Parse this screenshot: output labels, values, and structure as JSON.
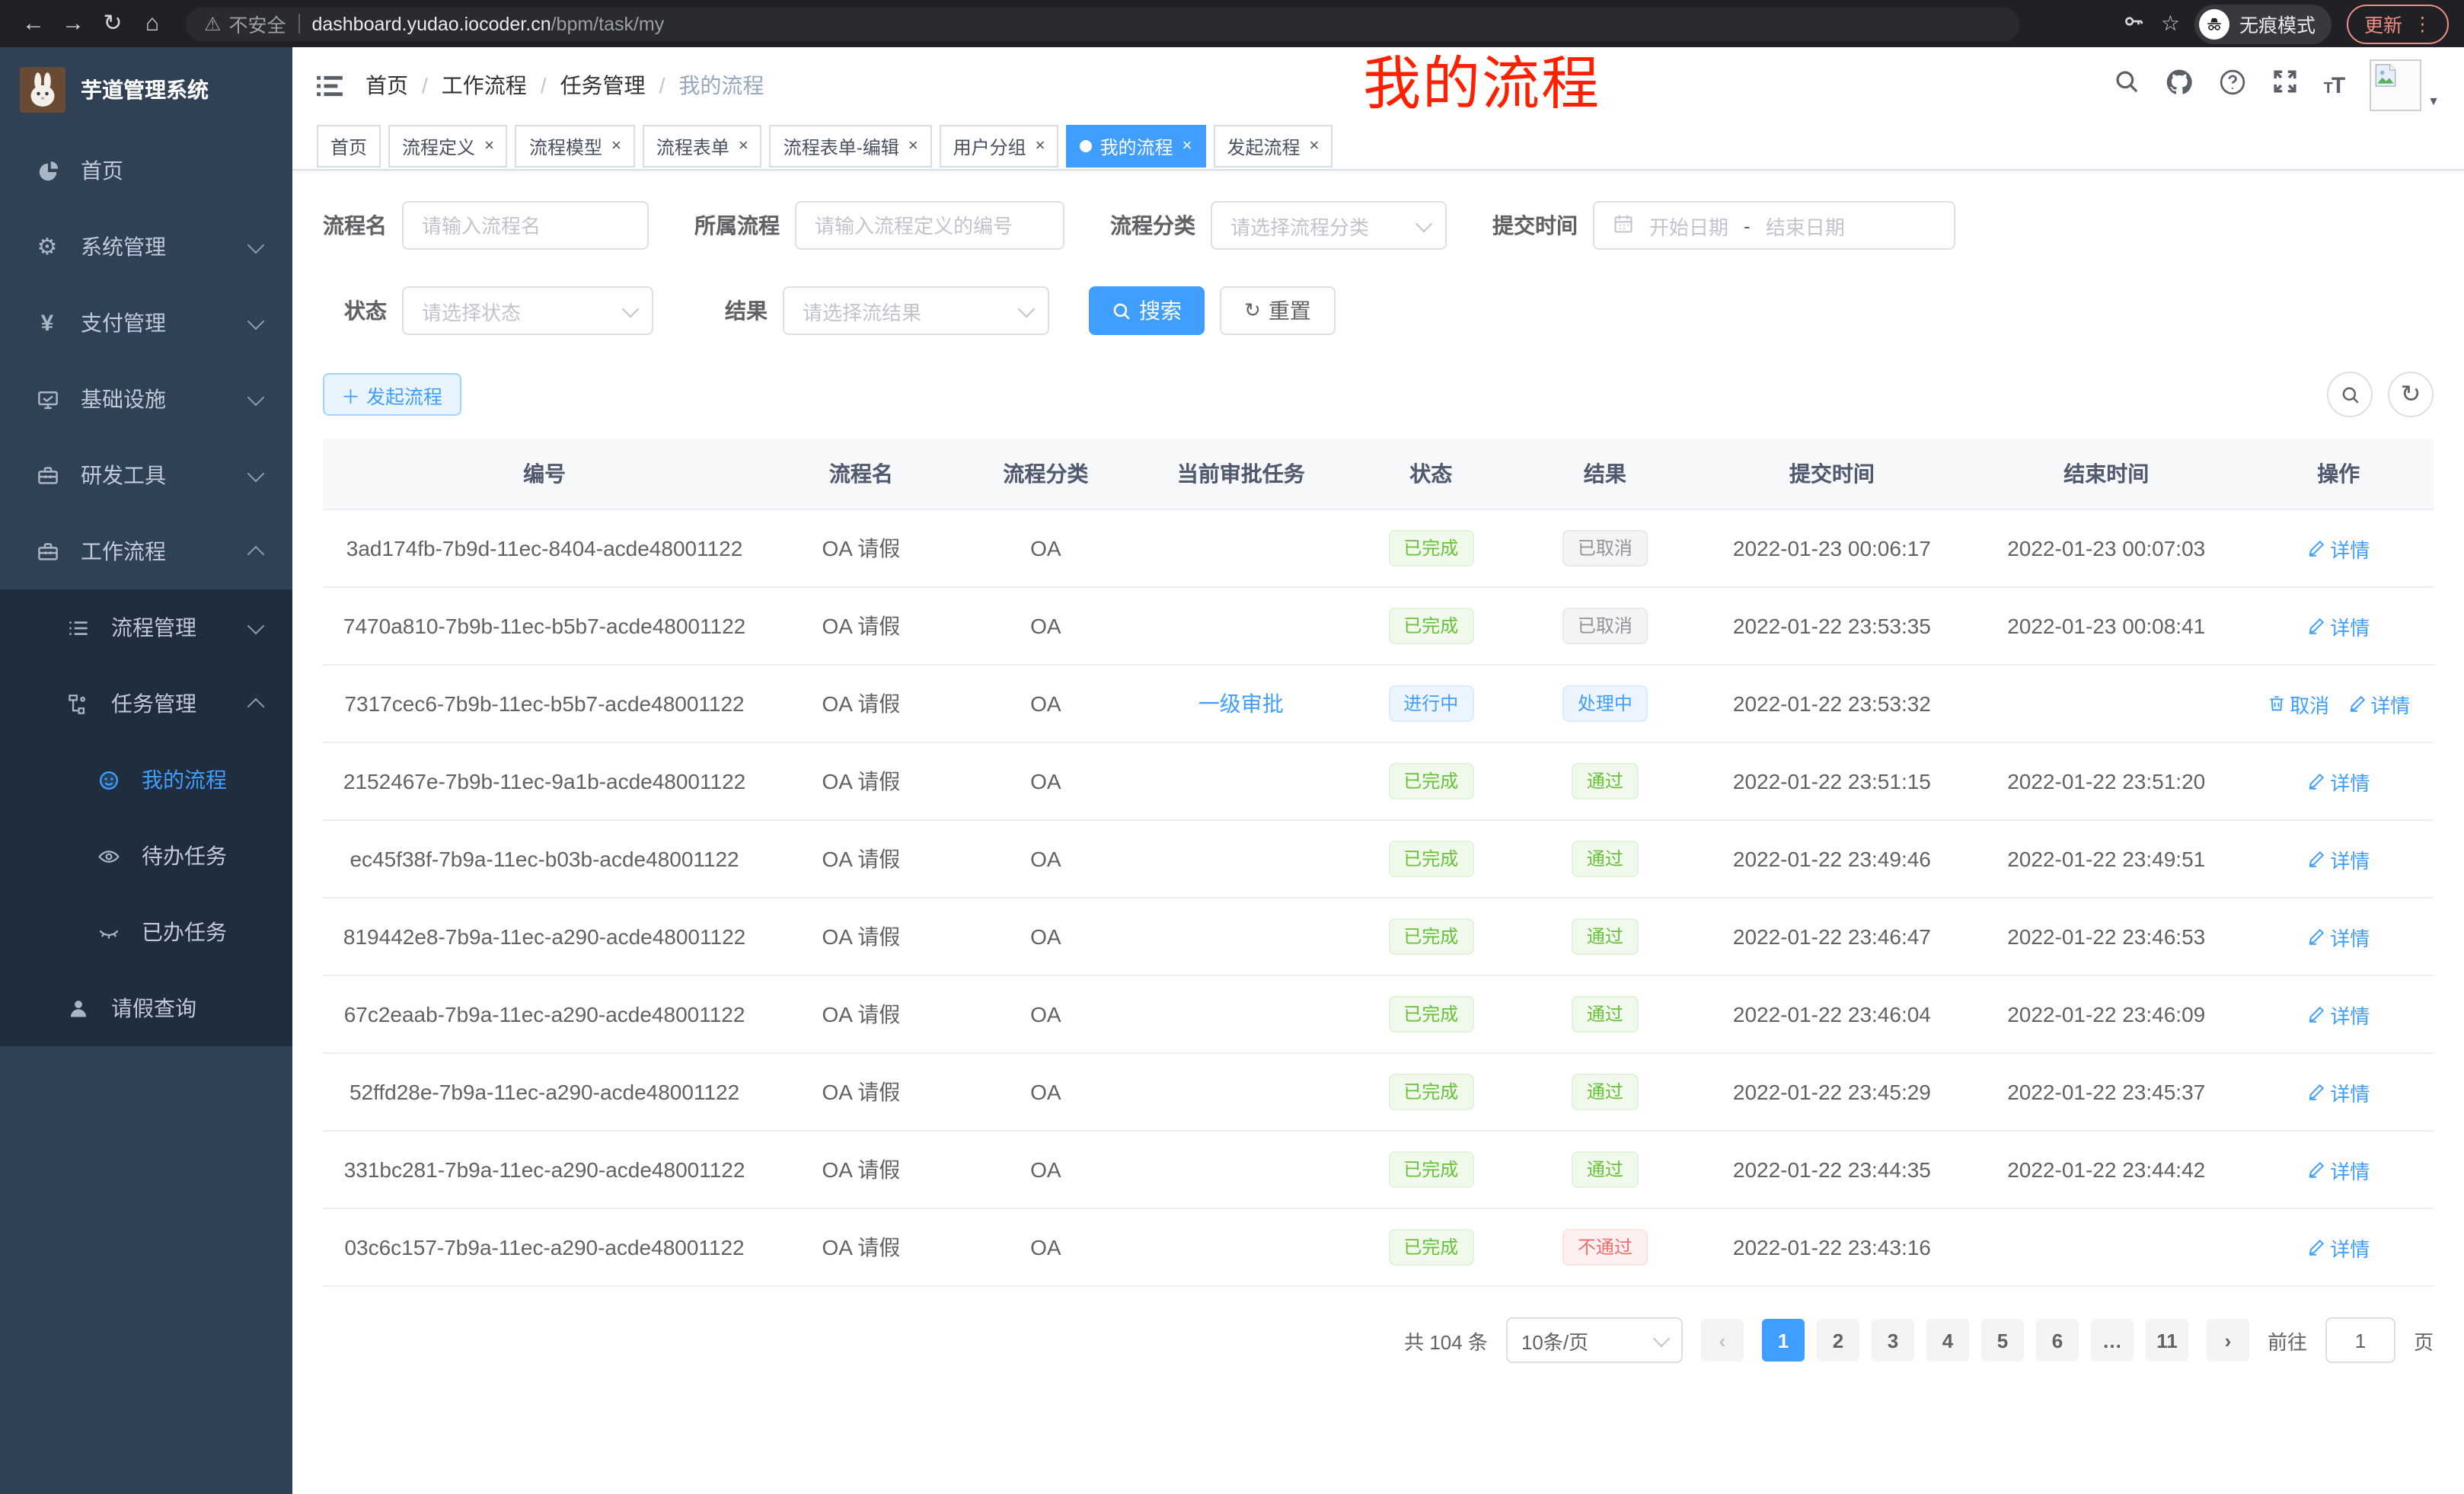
{
  "browser": {
    "security_label": "不安全",
    "url_host": "dashboard.yudao.iocoder.cn",
    "url_path": "/bpm/task/my",
    "incognito_label": "无痕模式",
    "update_label": "更新"
  },
  "sidebar": {
    "title": "芋道管理系统",
    "menu": [
      {
        "key": "home",
        "label": "首页",
        "icon": "dashboard-icon",
        "level": 1,
        "arrow": "",
        "active": false,
        "sub": false
      },
      {
        "key": "system",
        "label": "系统管理",
        "icon": "gear-icon",
        "level": 1,
        "arrow": "down",
        "active": false,
        "sub": false
      },
      {
        "key": "payment",
        "label": "支付管理",
        "icon": "yen-icon",
        "level": 1,
        "arrow": "down",
        "active": false,
        "sub": false
      },
      {
        "key": "infrastructure",
        "label": "基础设施",
        "icon": "monitor-icon",
        "level": 1,
        "arrow": "down",
        "active": false,
        "sub": false
      },
      {
        "key": "devtools",
        "label": "研发工具",
        "icon": "toolbox-icon",
        "level": 1,
        "arrow": "down",
        "active": false,
        "sub": false
      },
      {
        "key": "workflow",
        "label": "工作流程",
        "icon": "briefcase-icon",
        "level": 1,
        "arrow": "up",
        "active": false,
        "sub": false
      },
      {
        "key": "process-mgmt",
        "label": "流程管理",
        "icon": "list-icon",
        "level": 2,
        "arrow": "down",
        "active": false,
        "sub": true
      },
      {
        "key": "task-mgmt",
        "label": "任务管理",
        "icon": "flow-icon",
        "level": 2,
        "arrow": "up",
        "active": false,
        "sub": true
      },
      {
        "key": "my-process",
        "label": "我的流程",
        "icon": "face-icon",
        "level": 3,
        "arrow": "",
        "active": true,
        "sub": true
      },
      {
        "key": "todo-tasks",
        "label": "待办任务",
        "icon": "eye-icon",
        "level": 3,
        "arrow": "",
        "active": false,
        "sub": true
      },
      {
        "key": "done-tasks",
        "label": "已办任务",
        "icon": "eye-closed-icon",
        "level": 3,
        "arrow": "",
        "active": false,
        "sub": true
      },
      {
        "key": "leave-query",
        "label": "请假查询",
        "icon": "user-icon",
        "level": 2,
        "arrow": "",
        "active": false,
        "sub": true
      }
    ]
  },
  "header": {
    "breadcrumb": [
      "首页",
      "工作流程",
      "任务管理",
      "我的流程"
    ],
    "annotation": "我的流程"
  },
  "tabs": [
    {
      "key": "home",
      "label": "首页",
      "closable": false,
      "active": false
    },
    {
      "key": "process-definition",
      "label": "流程定义",
      "closable": true,
      "active": false
    },
    {
      "key": "process-model",
      "label": "流程模型",
      "closable": true,
      "active": false
    },
    {
      "key": "process-form",
      "label": "流程表单",
      "closable": true,
      "active": false
    },
    {
      "key": "process-form-edit",
      "label": "流程表单-编辑",
      "closable": true,
      "active": false
    },
    {
      "key": "user-group",
      "label": "用户分组",
      "closable": true,
      "active": false
    },
    {
      "key": "my-process",
      "label": "我的流程",
      "closable": true,
      "active": true
    },
    {
      "key": "start-process",
      "label": "发起流程",
      "closable": true,
      "active": false
    }
  ],
  "filters": {
    "name_label": "流程名",
    "name_placeholder": "请输入流程名",
    "process_label": "所属流程",
    "process_placeholder": "请输入流程定义的编号",
    "category_label": "流程分类",
    "category_placeholder": "请选择流程分类",
    "submit_time_label": "提交时间",
    "start_placeholder": "开始日期",
    "range_separator": "-",
    "end_placeholder": "结束日期",
    "status_label": "状态",
    "status_placeholder": "请选择状态",
    "result_label": "结果",
    "result_placeholder": "请选择流结果",
    "search_label": "搜索",
    "reset_label": "重置"
  },
  "toolbar": {
    "create_label": "发起流程"
  },
  "table": {
    "columns": [
      "编号",
      "流程名",
      "流程分类",
      "当前审批任务",
      "状态",
      "结果",
      "提交时间",
      "结束时间",
      "操作"
    ],
    "rows": [
      {
        "id": "3ad174fb-7b9d-11ec-8404-acde48001122",
        "name": "OA 请假",
        "category": "OA",
        "task": "",
        "status": "已完成",
        "status_type": "success",
        "result": "已取消",
        "result_type": "info",
        "submit_time": "2022-01-23 00:06:17",
        "end_time": "2022-01-23 00:07:03",
        "actions": [
          {
            "key": "detail",
            "label": "详情",
            "icon": "pen-icon"
          }
        ]
      },
      {
        "id": "7470a810-7b9b-11ec-b5b7-acde48001122",
        "name": "OA 请假",
        "category": "OA",
        "task": "",
        "status": "已完成",
        "status_type": "success",
        "result": "已取消",
        "result_type": "info",
        "submit_time": "2022-01-22 23:53:35",
        "end_time": "2022-01-23 00:08:41",
        "actions": [
          {
            "key": "detail",
            "label": "详情",
            "icon": "pen-icon"
          }
        ]
      },
      {
        "id": "7317cec6-7b9b-11ec-b5b7-acde48001122",
        "name": "OA 请假",
        "category": "OA",
        "task": "一级审批",
        "status": "进行中",
        "status_type": "primary",
        "result": "处理中",
        "result_type": "primary",
        "submit_time": "2022-01-22 23:53:32",
        "end_time": "",
        "actions": [
          {
            "key": "cancel",
            "label": "取消",
            "icon": "trash-icon"
          },
          {
            "key": "detail",
            "label": "详情",
            "icon": "pen-icon"
          }
        ]
      },
      {
        "id": "2152467e-7b9b-11ec-9a1b-acde48001122",
        "name": "OA 请假",
        "category": "OA",
        "task": "",
        "status": "已完成",
        "status_type": "success",
        "result": "通过",
        "result_type": "success",
        "submit_time": "2022-01-22 23:51:15",
        "end_time": "2022-01-22 23:51:20",
        "actions": [
          {
            "key": "detail",
            "label": "详情",
            "icon": "pen-icon"
          }
        ]
      },
      {
        "id": "ec45f38f-7b9a-11ec-b03b-acde48001122",
        "name": "OA 请假",
        "category": "OA",
        "task": "",
        "status": "已完成",
        "status_type": "success",
        "result": "通过",
        "result_type": "success",
        "submit_time": "2022-01-22 23:49:46",
        "end_time": "2022-01-22 23:49:51",
        "actions": [
          {
            "key": "detail",
            "label": "详情",
            "icon": "pen-icon"
          }
        ]
      },
      {
        "id": "819442e8-7b9a-11ec-a290-acde48001122",
        "name": "OA 请假",
        "category": "OA",
        "task": "",
        "status": "已完成",
        "status_type": "success",
        "result": "通过",
        "result_type": "success",
        "submit_time": "2022-01-22 23:46:47",
        "end_time": "2022-01-22 23:46:53",
        "actions": [
          {
            "key": "detail",
            "label": "详情",
            "icon": "pen-icon"
          }
        ]
      },
      {
        "id": "67c2eaab-7b9a-11ec-a290-acde48001122",
        "name": "OA 请假",
        "category": "OA",
        "task": "",
        "status": "已完成",
        "status_type": "success",
        "result": "通过",
        "result_type": "success",
        "submit_time": "2022-01-22 23:46:04",
        "end_time": "2022-01-22 23:46:09",
        "actions": [
          {
            "key": "detail",
            "label": "详情",
            "icon": "pen-icon"
          }
        ]
      },
      {
        "id": "52ffd28e-7b9a-11ec-a290-acde48001122",
        "name": "OA 请假",
        "category": "OA",
        "task": "",
        "status": "已完成",
        "status_type": "success",
        "result": "通过",
        "result_type": "success",
        "submit_time": "2022-01-22 23:45:29",
        "end_time": "2022-01-22 23:45:37",
        "actions": [
          {
            "key": "detail",
            "label": "详情",
            "icon": "pen-icon"
          }
        ]
      },
      {
        "id": "331bc281-7b9a-11ec-a290-acde48001122",
        "name": "OA 请假",
        "category": "OA",
        "task": "",
        "status": "已完成",
        "status_type": "success",
        "result": "通过",
        "result_type": "success",
        "submit_time": "2022-01-22 23:44:35",
        "end_time": "2022-01-22 23:44:42",
        "actions": [
          {
            "key": "detail",
            "label": "详情",
            "icon": "pen-icon"
          }
        ]
      },
      {
        "id": "03c6c157-7b9a-11ec-a290-acde48001122",
        "name": "OA 请假",
        "category": "OA",
        "task": "",
        "status": "已完成",
        "status_type": "success",
        "result": "不通过",
        "result_type": "danger",
        "submit_time": "2022-01-22 23:43:16",
        "end_time": "",
        "actions": [
          {
            "key": "detail",
            "label": "详情",
            "icon": "pen-icon"
          }
        ]
      }
    ]
  },
  "pagination": {
    "total": "共 104 条",
    "page_size": "10条/页",
    "pages": [
      "1",
      "2",
      "3",
      "4",
      "5",
      "6",
      "…",
      "11"
    ],
    "active_page": "1",
    "goto_label": "前往",
    "goto_value": "1",
    "unit_label": "页"
  },
  "colors": {
    "accent": "#409eff",
    "success": "#67c23a",
    "info": "#909399",
    "danger": "#f56c6c",
    "annotation_red": "#ff2000",
    "sidebar_bg": "#304156",
    "submenu_bg": "#1f2d3d"
  }
}
